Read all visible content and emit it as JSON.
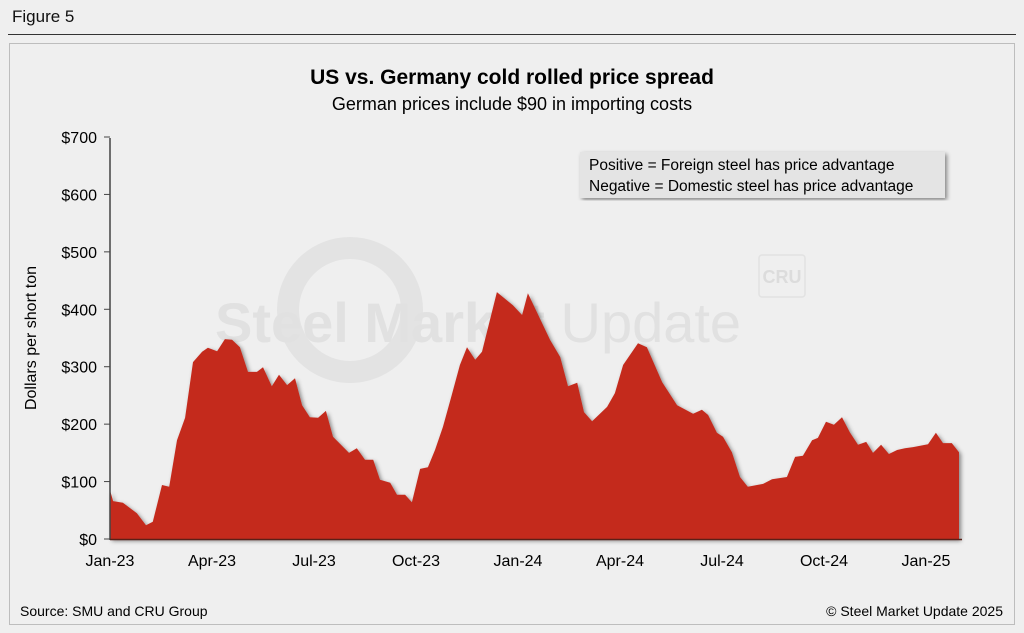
{
  "figure_label": "Figure 5",
  "footer": {
    "source": "Source: SMU and CRU Group",
    "copyright": "© Steel Market Update 2025"
  },
  "watermark": {
    "text": "Steel Market Update",
    "logo": "CRU"
  },
  "colors": {
    "area": "#c42b1e",
    "background": "#efefef"
  },
  "chart_data": {
    "type": "area",
    "title": "US vs. Germany cold rolled price spread",
    "subtitle": "German prices include $90 in importing costs",
    "ylabel": "Dollars per short ton",
    "xlabel": "",
    "ylim": [
      0,
      700
    ],
    "yticks": [
      0,
      100,
      200,
      300,
      400,
      500,
      600,
      700
    ],
    "ytick_labels": [
      "$0",
      "$100",
      "$200",
      "$300",
      "$400",
      "$500",
      "$600",
      "$700"
    ],
    "xlim_months_since_jan23": [
      0,
      25
    ],
    "xticks": [
      0,
      3,
      6,
      9,
      12,
      15,
      18,
      21,
      24
    ],
    "xtick_labels": [
      "Jan-23",
      "Apr-23",
      "Jul-23",
      "Oct-23",
      "Jan-24",
      "Apr-24",
      "Jul-24",
      "Oct-24",
      "Jan-25"
    ],
    "legend": {
      "placement": "top-right",
      "lines": [
        "Positive = Foreign steel has price advantage",
        "Negative = Domestic steel has price advantage"
      ]
    },
    "grid": false,
    "series": [
      {
        "name": "Price spread",
        "x": [
          0,
          0.06,
          0.09,
          0.38,
          0.79,
          1.06,
          1.26,
          1.53,
          1.74,
          1.97,
          2.21,
          2.44,
          2.71,
          2.88,
          3.15,
          3.38,
          3.59,
          3.82,
          4.06,
          4.32,
          4.5,
          4.76,
          4.97,
          5.21,
          5.44,
          5.65,
          5.88,
          6.12,
          6.35,
          6.56,
          7.03,
          7.26,
          7.5,
          7.74,
          7.94,
          8.24,
          8.44,
          8.68,
          8.88,
          9.12,
          9.35,
          9.56,
          9.79,
          10.03,
          10.29,
          10.5,
          10.74,
          10.94,
          11.38,
          11.85,
          12.12,
          12.29,
          12.94,
          13.24,
          13.47,
          13.74,
          13.94,
          14.18,
          14.62,
          14.85,
          15.09,
          15.53,
          15.79,
          16.24,
          16.68,
          17.15,
          17.41,
          17.59,
          17.85,
          18.03,
          18.29,
          18.53,
          18.76,
          19.03,
          19.21,
          19.47,
          19.91,
          20.15,
          20.38,
          20.65,
          20.82,
          21.06,
          21.29,
          21.53,
          21.76,
          22,
          22.24,
          22.44,
          22.68,
          22.91,
          23.15,
          23.38,
          23.62,
          24.06,
          24.29,
          24.5,
          24.76,
          24.97
        ],
        "values": [
          85,
          73,
          66,
          63,
          45,
          24,
          30,
          94,
          91,
          172,
          211,
          308,
          326,
          333,
          327,
          348,
          347,
          334,
          291,
          291,
          299,
          266,
          286,
          268,
          280,
          233,
          212,
          211,
          223,
          178,
          150,
          158,
          138,
          138,
          103,
          98,
          77,
          77,
          64,
          122,
          125,
          155,
          195,
          246,
          303,
          334,
          312,
          326,
          430,
          407,
          390,
          428,
          347,
          317,
          266,
          272,
          221,
          205,
          230,
          254,
          303,
          341,
          334,
          273,
          233,
          218,
          225,
          216,
          185,
          178,
          151,
          108,
          91,
          94,
          96,
          104,
          108,
          143,
          145,
          172,
          176,
          204,
          199,
          212,
          186,
          164,
          169,
          150,
          164,
          148,
          155,
          158,
          160,
          165,
          185,
          167,
          167,
          151
        ]
      }
    ]
  }
}
